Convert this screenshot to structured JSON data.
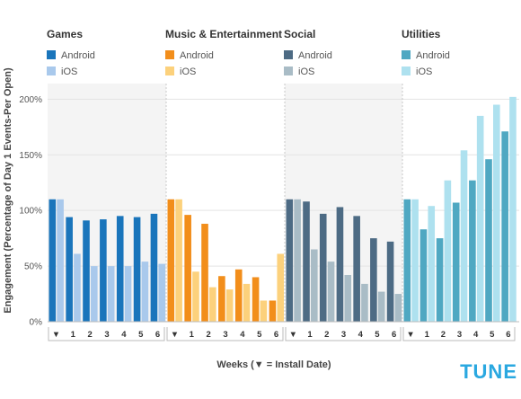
{
  "chart_data": {
    "type": "bar",
    "ylabel": "Engagement (Percentage of Day 1 Events-Per Open)",
    "xlabel": "Weeks (▼ = Install Date)",
    "ylim": [
      0,
      200
    ],
    "yticks": [
      "0%",
      "50%",
      "100%",
      "150%",
      "200%"
    ],
    "categories": [
      "▼",
      "1",
      "2",
      "3",
      "4",
      "5",
      "6"
    ],
    "groups": [
      {
        "title": "Games",
        "series": [
          {
            "name": "Android",
            "color": "#1a75bb",
            "values": [
              110,
              94,
              91,
              92,
              95,
              94,
              97
            ]
          },
          {
            "name": "iOS",
            "color": "#a9c9ec",
            "values": [
              110,
              61,
              50,
              50,
              50,
              54,
              52
            ]
          }
        ]
      },
      {
        "title": "Music & Entertainment",
        "series": [
          {
            "name": "Android",
            "color": "#f28e1b",
            "values": [
              110,
              96,
              88,
              41,
              47,
              40,
              19
            ]
          },
          {
            "name": "iOS",
            "color": "#fcd17c",
            "values": [
              110,
              45,
              31,
              29,
              34,
              19,
              61
            ]
          }
        ]
      },
      {
        "title": "Social",
        "series": [
          {
            "name": "Android",
            "color": "#4d6b84",
            "values": [
              110,
              108,
              97,
              103,
              95,
              75,
              72
            ]
          },
          {
            "name": "iOS",
            "color": "#a9bcc6",
            "values": [
              110,
              65,
              54,
              42,
              34,
              27,
              25
            ]
          }
        ]
      },
      {
        "title": "Utilities",
        "series": [
          {
            "name": "Android",
            "color": "#4fa8c2",
            "values": [
              110,
              83,
              75,
              107,
              127,
              146,
              171
            ]
          },
          {
            "name": "iOS",
            "color": "#aee1ef",
            "values": [
              110,
              104,
              127,
              154,
              185,
              195,
              202
            ]
          }
        ]
      }
    ]
  },
  "logo": "TUNE"
}
